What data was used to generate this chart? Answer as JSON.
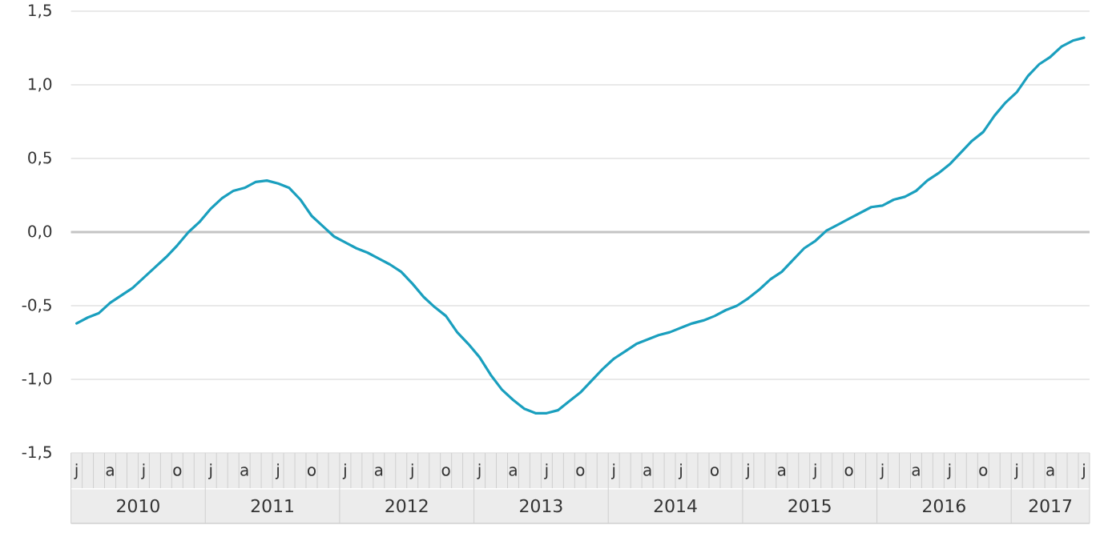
{
  "chart_data": {
    "type": "line",
    "categories": [
      "j",
      null,
      null,
      "a",
      null,
      null,
      "j",
      null,
      null,
      "o",
      null,
      null,
      "j",
      null,
      null,
      "a",
      null,
      null,
      "j",
      null,
      null,
      "o",
      null,
      null,
      "j",
      null,
      null,
      "a",
      null,
      null,
      "j",
      null,
      null,
      "o",
      null,
      null,
      "j",
      null,
      null,
      "a",
      null,
      null,
      "j",
      null,
      null,
      "o",
      null,
      null,
      "j",
      null,
      null,
      "a",
      null,
      null,
      "j",
      null,
      null,
      "o",
      null,
      null,
      "j",
      null,
      null,
      "a",
      null,
      null,
      "j",
      null,
      null,
      "o",
      null,
      null,
      "j",
      null,
      null,
      "a",
      null,
      null,
      "j",
      null,
      null,
      "o",
      null,
      null,
      "j",
      null,
      null,
      "a",
      null,
      null,
      "j"
    ],
    "series": [
      {
        "color": "#1a9fbe",
        "line_style": "solid",
        "values": [
          -0.62,
          -0.58,
          -0.55,
          -0.48,
          -0.43,
          -0.38,
          -0.31,
          -0.24,
          -0.17,
          -0.09,
          0.0,
          0.07,
          0.16,
          0.23,
          0.28,
          0.3,
          0.34,
          0.35,
          0.33,
          0.3,
          0.22,
          0.11,
          0.04,
          -0.03,
          -0.07,
          -0.11,
          -0.14,
          -0.18,
          -0.22,
          -0.27,
          -0.35,
          -0.44,
          -0.51,
          -0.57,
          -0.68,
          -0.76,
          -0.85,
          -0.97,
          -1.07,
          -1.14,
          -1.2,
          -1.23,
          -1.23,
          -1.21,
          -1.15,
          -1.09,
          -1.01,
          -0.93,
          -0.86,
          -0.81,
          -0.76,
          -0.73,
          -0.7,
          -0.68,
          -0.65,
          -0.62,
          -0.6,
          -0.57,
          -0.53,
          -0.5,
          -0.45,
          -0.39,
          -0.32,
          -0.27,
          -0.19,
          -0.11,
          -0.06,
          0.01,
          0.05,
          0.09,
          0.13,
          0.17,
          0.18,
          0.22,
          0.24,
          0.28,
          0.35,
          0.4,
          0.46,
          0.54,
          0.62,
          0.68,
          0.79,
          0.88,
          0.95,
          1.06,
          1.14,
          1.19,
          1.26,
          1.3,
          1.32
        ]
      }
    ],
    "ylim": [
      -1.5,
      1.5
    ],
    "yticks": [
      {
        "value": -1.5,
        "label": "-1,5"
      },
      {
        "value": -1.0,
        "label": "-1,0"
      },
      {
        "value": -0.5,
        "label": "-0,5"
      },
      {
        "value": 0,
        "label": "0,0"
      },
      {
        "value": 0.5,
        "label": "0,5"
      },
      {
        "value": 1.0,
        "label": "1,0"
      },
      {
        "value": 1.5,
        "label": "1,5"
      }
    ],
    "grid": "y",
    "ref_lines": [
      {
        "axis": "y",
        "value": 0,
        "color": "#c4c4c4"
      }
    ],
    "annotations": [
      "2010",
      "2011",
      "2012",
      "2013",
      "2014",
      "2015",
      "2016",
      "2017"
    ]
  }
}
